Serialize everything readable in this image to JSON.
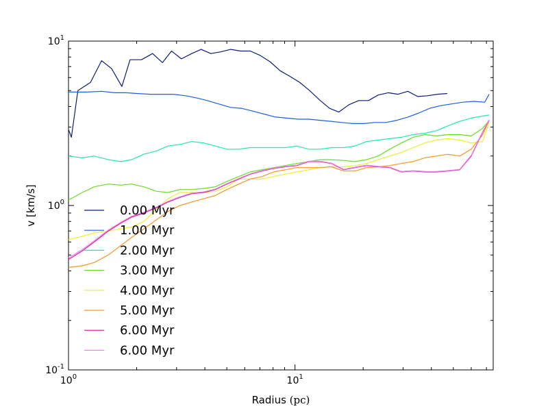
{
  "chart_data": {
    "type": "line",
    "title": "",
    "xlabel": "Radius",
    "xlabel_unit": "(pc)",
    "ylabel": "v [km/s]",
    "xscale": "log",
    "yscale": "log",
    "xlim": [
      1.0,
      75.0
    ],
    "ylim": [
      0.1,
      10.0
    ],
    "grid": false,
    "legend_position": "lower-left",
    "x_ticks": [
      {
        "base": "10",
        "exp": "0",
        "value": 1
      },
      {
        "base": "10",
        "exp": "1",
        "value": 10
      }
    ],
    "y_ticks": [
      {
        "base": "10",
        "exp": "-1",
        "value": 0.1
      },
      {
        "base": "10",
        "exp": "0",
        "value": 1
      },
      {
        "base": "10",
        "exp": "1",
        "value": 10
      }
    ],
    "series": [
      {
        "name": "0.00 Myr",
        "color": "#0b1a78",
        "x": [
          1.0,
          1.03,
          1.1,
          1.25,
          1.4,
          1.55,
          1.72,
          1.87,
          2.1,
          2.35,
          2.6,
          2.85,
          3.15,
          3.5,
          3.85,
          4.25,
          4.7,
          5.2,
          5.75,
          6.35,
          7.0,
          7.75,
          8.6,
          9.5,
          10.5,
          11.6,
          12.8,
          14.2,
          15.6,
          17.3,
          19.1,
          21.1,
          23.3,
          25.8,
          28.5,
          31.5,
          34.8,
          38.4,
          42.5,
          47.0
        ],
        "y": [
          2.9,
          2.6,
          5.0,
          5.6,
          7.6,
          6.8,
          5.3,
          7.7,
          7.7,
          8.4,
          7.4,
          8.7,
          7.8,
          8.4,
          8.9,
          8.4,
          8.6,
          8.9,
          8.7,
          8.7,
          8.2,
          7.5,
          6.6,
          6.1,
          5.6,
          5.0,
          4.4,
          3.9,
          3.7,
          4.1,
          4.35,
          4.35,
          4.7,
          4.85,
          4.75,
          4.95,
          4.6,
          4.65,
          4.75,
          4.8
        ]
      },
      {
        "name": "1.00 Myr",
        "color": "#1a5fe0",
        "x": [
          1.0,
          1.2,
          1.4,
          1.6,
          1.8,
          2.0,
          2.3,
          2.6,
          2.9,
          3.3,
          3.7,
          4.1,
          4.6,
          5.2,
          5.8,
          6.5,
          7.3,
          8.2,
          9.2,
          10.3,
          11.5,
          12.9,
          14.4,
          16.1,
          18.0,
          20.1,
          22.5,
          25.2,
          28.2,
          31.5,
          35.2,
          39.4,
          44.0,
          49.2,
          55.0,
          61.5,
          68.8,
          72.0
        ],
        "y": [
          4.9,
          4.9,
          4.95,
          4.85,
          4.85,
          4.8,
          4.75,
          4.75,
          4.75,
          4.65,
          4.5,
          4.35,
          4.15,
          3.95,
          3.9,
          3.75,
          3.6,
          3.45,
          3.4,
          3.35,
          3.35,
          3.3,
          3.25,
          3.2,
          3.15,
          3.15,
          3.2,
          3.2,
          3.3,
          3.45,
          3.65,
          3.9,
          4.05,
          4.15,
          4.25,
          4.3,
          4.25,
          4.75
        ]
      },
      {
        "name": "2.00 Myr",
        "color": "#1fe8b0",
        "x": [
          1.0,
          1.15,
          1.3,
          1.5,
          1.7,
          1.9,
          2.15,
          2.45,
          2.75,
          3.1,
          3.5,
          3.95,
          4.45,
          5.0,
          5.65,
          6.35,
          7.15,
          8.05,
          9.05,
          10.2,
          11.5,
          12.9,
          14.5,
          16.4,
          18.4,
          20.7,
          23.3,
          26.2,
          29.5,
          33.2,
          37.4,
          42.1,
          47.3,
          53.3,
          60.0,
          67.4,
          72.0
        ],
        "y": [
          2.0,
          1.95,
          2.0,
          1.9,
          1.85,
          1.9,
          2.05,
          2.15,
          2.3,
          2.35,
          2.45,
          2.4,
          2.3,
          2.2,
          2.2,
          2.25,
          2.25,
          2.25,
          2.25,
          2.3,
          2.2,
          2.2,
          2.25,
          2.25,
          2.3,
          2.45,
          2.5,
          2.55,
          2.6,
          2.7,
          2.75,
          2.85,
          3.05,
          3.25,
          3.4,
          3.5,
          3.55
        ]
      },
      {
        "name": "3.00 Myr",
        "color": "#66dd22",
        "x": [
          1.0,
          1.15,
          1.3,
          1.5,
          1.7,
          1.9,
          2.15,
          2.45,
          2.75,
          3.1,
          3.5,
          3.95,
          4.45,
          5.0,
          5.65,
          6.35,
          7.15,
          8.05,
          9.05,
          10.2,
          11.5,
          12.9,
          14.5,
          16.4,
          18.4,
          20.7,
          23.3,
          26.2,
          29.5,
          33.2,
          37.4,
          42.1,
          47.3,
          53.3,
          60.0,
          67.4,
          72.0
        ],
        "y": [
          1.08,
          1.2,
          1.3,
          1.35,
          1.33,
          1.35,
          1.3,
          1.22,
          1.2,
          1.25,
          1.25,
          1.27,
          1.3,
          1.4,
          1.5,
          1.6,
          1.65,
          1.7,
          1.75,
          1.8,
          1.85,
          1.9,
          1.9,
          1.88,
          1.85,
          1.9,
          2.0,
          2.2,
          2.4,
          2.6,
          2.7,
          2.65,
          2.7,
          2.7,
          2.65,
          2.95,
          3.3
        ]
      },
      {
        "name": "4.00 Myr",
        "color": "#e8f02a",
        "x": [
          1.0,
          1.15,
          1.3,
          1.5,
          1.7,
          1.9,
          2.15,
          2.45,
          2.75,
          3.1,
          3.5,
          3.95,
          4.45,
          5.0,
          5.65,
          6.35,
          7.15,
          8.05,
          9.05,
          10.2,
          11.5,
          12.9,
          14.5,
          16.4,
          18.4,
          20.7,
          23.3,
          26.2,
          29.5,
          33.2,
          37.4,
          42.1,
          47.3,
          53.3,
          60.0,
          67.4,
          72.0
        ],
        "y": [
          0.62,
          0.65,
          0.68,
          0.7,
          0.72,
          0.74,
          0.8,
          0.95,
          1.1,
          1.2,
          1.2,
          1.2,
          1.22,
          1.3,
          1.45,
          1.45,
          1.45,
          1.5,
          1.55,
          1.6,
          1.65,
          1.7,
          1.72,
          1.72,
          1.75,
          1.8,
          1.9,
          2.0,
          2.1,
          2.25,
          2.4,
          2.5,
          2.55,
          2.5,
          2.4,
          2.45,
          3.2
        ]
      },
      {
        "name": "5.00 Myr",
        "color": "#f7961e",
        "x": [
          1.0,
          1.15,
          1.3,
          1.5,
          1.7,
          1.9,
          2.15,
          2.45,
          2.75,
          3.1,
          3.5,
          3.95,
          4.45,
          5.0,
          5.65,
          6.35,
          7.15,
          8.05,
          9.05,
          10.2,
          11.5,
          12.9,
          14.5,
          16.4,
          18.4,
          20.7,
          23.3,
          26.2,
          29.5,
          33.2,
          37.4,
          42.1,
          47.3,
          53.3,
          60.0,
          67.4,
          72.0
        ],
        "y": [
          0.42,
          0.43,
          0.45,
          0.5,
          0.57,
          0.64,
          0.72,
          0.82,
          0.92,
          1.0,
          1.05,
          1.1,
          1.15,
          1.25,
          1.35,
          1.45,
          1.5,
          1.6,
          1.65,
          1.7,
          1.7,
          1.7,
          1.72,
          1.62,
          1.62,
          1.7,
          1.72,
          1.75,
          1.8,
          1.85,
          1.95,
          2.0,
          2.05,
          2.0,
          2.2,
          2.7,
          3.3
        ]
      },
      {
        "name": "6.00 Myr",
        "color": "#e0109a",
        "x": [
          1.0,
          1.15,
          1.3,
          1.5,
          1.7,
          1.9,
          2.15,
          2.45,
          2.75,
          3.1,
          3.5,
          3.95,
          4.45,
          5.0,
          5.65,
          6.35,
          7.15,
          8.05,
          9.05,
          10.2,
          11.5,
          12.9,
          14.5,
          16.4,
          18.4,
          20.7,
          23.3,
          26.2,
          29.5,
          33.2,
          37.4,
          42.1,
          47.3,
          53.3,
          60.0,
          67.4,
          72.0
        ],
        "y": [
          0.47,
          0.53,
          0.6,
          0.7,
          0.78,
          0.85,
          0.9,
          0.97,
          1.05,
          1.12,
          1.18,
          1.2,
          1.25,
          1.35,
          1.45,
          1.55,
          1.62,
          1.68,
          1.72,
          1.75,
          1.85,
          1.85,
          1.8,
          1.65,
          1.7,
          1.75,
          1.72,
          1.7,
          1.6,
          1.62,
          1.6,
          1.6,
          1.62,
          1.65,
          2.0,
          2.8,
          3.3
        ]
      },
      {
        "name": "6.00 Myr",
        "color": "#ee82ee",
        "x": [
          1.0,
          1.15,
          1.3,
          1.5,
          1.7,
          1.9,
          2.15,
          2.45,
          2.75,
          3.1,
          3.5,
          3.95,
          4.45,
          5.0,
          5.65,
          6.35,
          7.15,
          8.05,
          9.05,
          10.2,
          11.5,
          12.9,
          14.5,
          16.4,
          18.4,
          20.7,
          23.3,
          26.2,
          29.5,
          33.2,
          37.4,
          42.1,
          47.3,
          53.3,
          60.0,
          67.4,
          72.0
        ],
        "y": [
          0.48,
          0.54,
          0.61,
          0.71,
          0.79,
          0.86,
          0.91,
          0.98,
          1.06,
          1.13,
          1.19,
          1.21,
          1.26,
          1.36,
          1.46,
          1.56,
          1.63,
          1.69,
          1.73,
          1.76,
          1.86,
          1.86,
          1.81,
          1.66,
          1.71,
          1.76,
          1.73,
          1.71,
          1.61,
          1.63,
          1.61,
          1.61,
          1.63,
          1.66,
          2.02,
          2.82,
          3.32
        ]
      }
    ]
  }
}
